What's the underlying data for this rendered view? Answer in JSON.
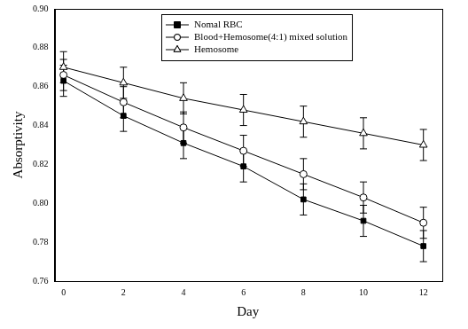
{
  "chart_data": {
    "type": "line",
    "x_label": "Day",
    "y_label": "Absorptivity",
    "x": [
      0,
      2,
      4,
      6,
      8,
      10,
      12
    ],
    "xlim": [
      -0.3,
      12.6
    ],
    "xticks": [
      0,
      2,
      4,
      6,
      8,
      10,
      12
    ],
    "ylim": [
      0.76,
      0.9
    ],
    "yticks": [
      0.76,
      0.78,
      {
        "value": 0.8,
        "label": "0.80"
      },
      0.82,
      0.84,
      0.86,
      0.88,
      {
        "value": 0.9,
        "label": "0.90"
      }
    ],
    "grid": false,
    "legend": "top",
    "series": [
      {
        "name": "Nomal RBC",
        "color": "#000000",
        "marker": "square",
        "line_style": "solid",
        "values": [
          0.863,
          0.845,
          0.831,
          0.819,
          0.802,
          0.791,
          0.778
        ],
        "errors": [
          0.008,
          0.008,
          0.008,
          0.008,
          0.008,
          0.008,
          0.008
        ]
      },
      {
        "name": "Blood+Hemosome(4:1) mixed solution",
        "color": "#000000",
        "marker": "open_circle",
        "line_style": "solid",
        "values": [
          0.866,
          0.852,
          0.839,
          0.827,
          0.815,
          0.803,
          0.79
        ],
        "errors": [
          0.008,
          0.008,
          0.008,
          0.008,
          0.008,
          0.008,
          0.008
        ]
      },
      {
        "name": "Hemosome",
        "color": "#000000",
        "marker": "open_triangle",
        "line_style": "solid",
        "values": [
          0.87,
          0.862,
          0.854,
          0.848,
          0.842,
          0.836,
          0.83
        ],
        "errors": [
          0.008,
          0.008,
          0.008,
          0.008,
          0.008,
          0.008,
          0.008
        ]
      }
    ]
  }
}
